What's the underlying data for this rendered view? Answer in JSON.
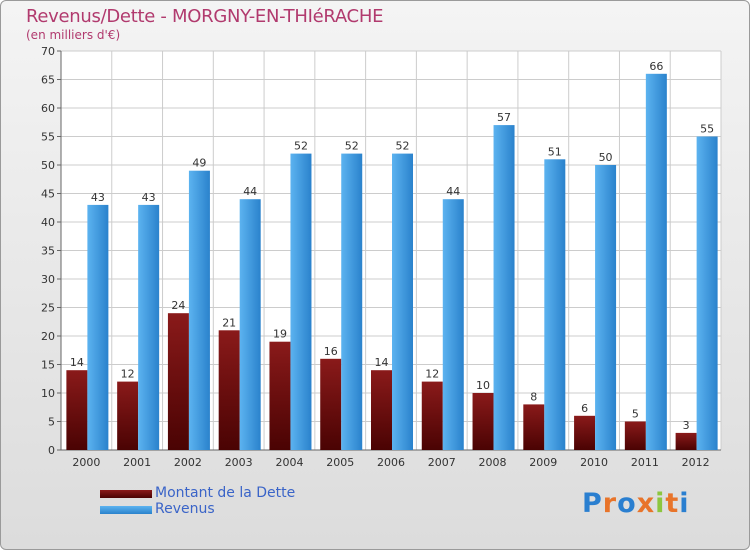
{
  "colors": {
    "debt": "#6b0a0a",
    "revenue": "#2f8fdc",
    "title": "#b13a6e",
    "grid": "#cccccc",
    "legend_text": "#3a64c8"
  },
  "logo": {
    "letters": [
      "P",
      "r",
      "o",
      "x",
      "i",
      "t",
      "i"
    ],
    "colors": [
      "#2a7fd0",
      "#e8742a",
      "#2a7fd0",
      "#e8742a",
      "#8cc63f",
      "#e8742a",
      "#2a7fd0"
    ]
  },
  "chart_data": {
    "type": "bar",
    "title": "Revenus/Dette - MORGNY-EN-THIéRACHE",
    "subtitle": "(en milliers d'€)",
    "xlabel": "",
    "ylabel": "",
    "ylim": [
      0,
      70
    ],
    "yticks": [
      0,
      5,
      10,
      15,
      20,
      25,
      30,
      35,
      40,
      45,
      50,
      55,
      60,
      65,
      70
    ],
    "categories": [
      "2000",
      "2001",
      "2002",
      "2003",
      "2004",
      "2005",
      "2006",
      "2007",
      "2008",
      "2009",
      "2010",
      "2011",
      "2012"
    ],
    "series": [
      {
        "name": "Montant de la Dette",
        "values": [
          14,
          12,
          24,
          21,
          19,
          16,
          14,
          12,
          10,
          8,
          6,
          5,
          3
        ]
      },
      {
        "name": "Revenus",
        "values": [
          43,
          43,
          49,
          44,
          52,
          52,
          52,
          44,
          57,
          51,
          50,
          66,
          55
        ]
      }
    ],
    "legend": "bottom-left"
  }
}
